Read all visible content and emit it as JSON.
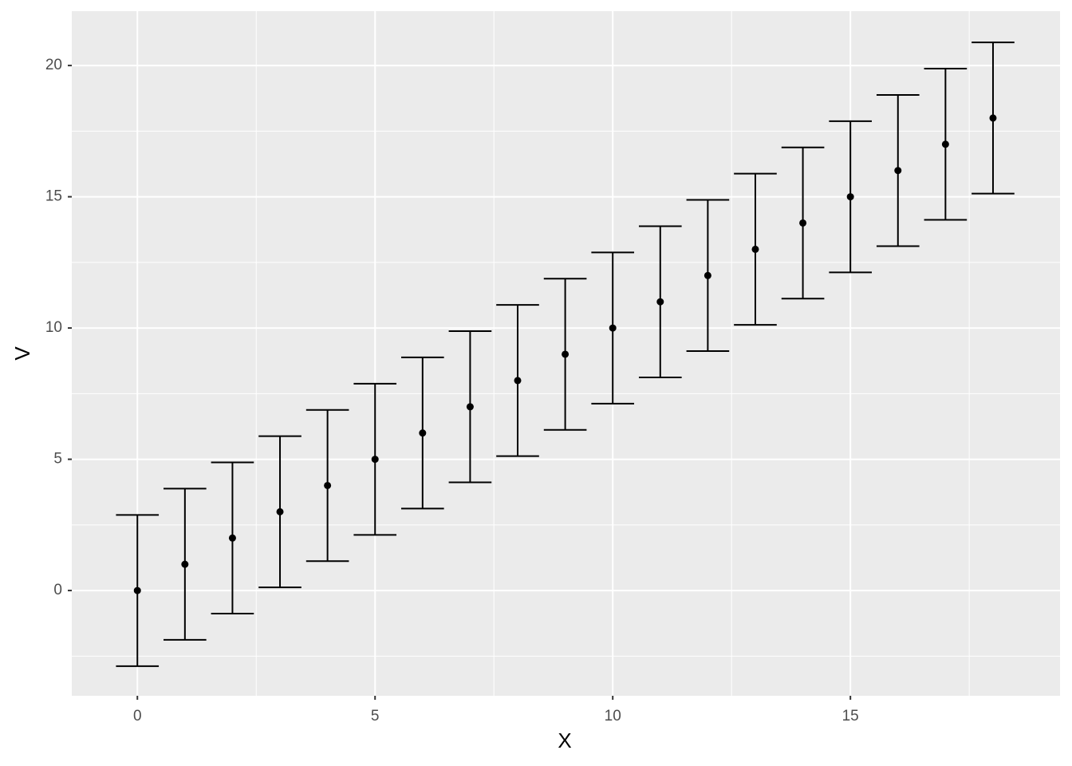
{
  "chart_data": {
    "type": "errorbar",
    "x": [
      0,
      1,
      2,
      3,
      4,
      5,
      6,
      7,
      8,
      9,
      10,
      11,
      12,
      13,
      14,
      15,
      16,
      17,
      18
    ],
    "values": [
      0,
      1,
      2,
      3,
      4,
      5,
      6,
      7,
      8,
      9,
      10,
      11,
      12,
      13,
      14,
      15,
      16,
      17,
      18
    ],
    "errors": [
      2.88,
      2.88,
      2.88,
      2.88,
      2.88,
      2.88,
      2.88,
      2.88,
      2.88,
      2.88,
      2.88,
      2.88,
      2.88,
      2.88,
      2.88,
      2.88,
      2.88,
      2.88,
      2.88
    ],
    "xlim": [
      -1.38,
      19.41
    ],
    "ylim": [
      -4.01,
      22.07
    ],
    "xticks": [
      0,
      5,
      10,
      15
    ],
    "yticks": [
      0,
      5,
      10,
      15,
      20
    ],
    "x_label": "X",
    "y_label": "V",
    "grid": true,
    "color": "#000000",
    "background": "#ebebeb"
  }
}
